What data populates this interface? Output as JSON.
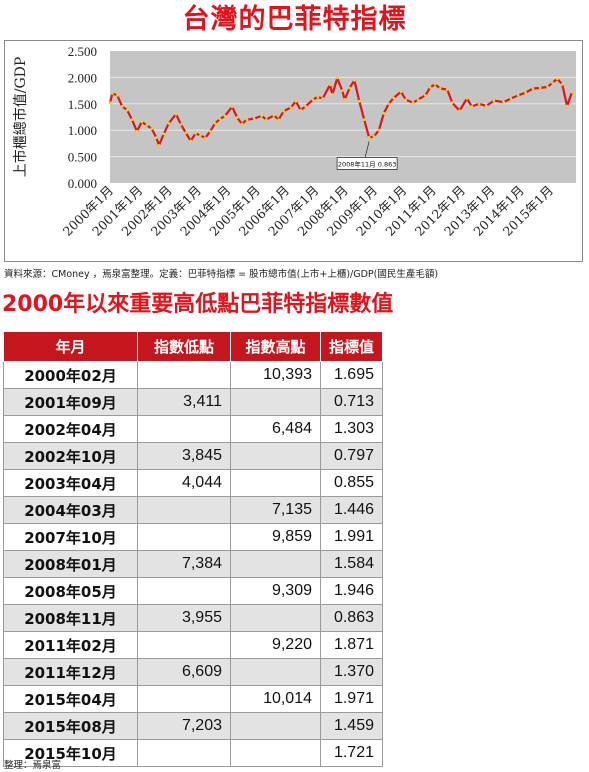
{
  "title": "台灣的巴菲特指標",
  "source_note": "資料來源：CMoney ，焉泉富整理。定義：巴菲特指標 = 股市總市值(上市+上櫃)/GDP(國民生產毛額)",
  "table_title": "2000年以來重要高低點巴菲特指標數值",
  "table": {
    "headers": [
      "年月",
      "指數低點",
      "指數高點",
      "指標值"
    ],
    "rows": [
      [
        "2000年02月",
        "",
        "10,393",
        "1.695"
      ],
      [
        "2001年09月",
        "3,411",
        "",
        "0.713"
      ],
      [
        "2002年04月",
        "",
        "6,484",
        "1.303"
      ],
      [
        "2002年10月",
        "3,845",
        "",
        "0.797"
      ],
      [
        "2003年04月",
        "4,044",
        "",
        "0.855"
      ],
      [
        "2004年03月",
        "",
        "7,135",
        "1.446"
      ],
      [
        "2007年10月",
        "",
        "9,859",
        "1.991"
      ],
      [
        "2008年01月",
        "7,384",
        "",
        "1.584"
      ],
      [
        "2008年05月",
        "",
        "9,309",
        "1.946"
      ],
      [
        "2008年11月",
        "3,955",
        "",
        "0.863"
      ],
      [
        "2011年02月",
        "",
        "9,220",
        "1.871"
      ],
      [
        "2011年12月",
        "6,609",
        "",
        "1.370"
      ],
      [
        "2015年04月",
        "",
        "10,014",
        "1.971"
      ],
      [
        "2015年08月",
        "7,203",
        "",
        "1.459"
      ],
      [
        "2015年10月",
        "",
        "",
        "1.721"
      ]
    ]
  },
  "footer": "整理：焉泉富",
  "colors": {
    "title_red": "#e4131b",
    "header_red": "#c6161d",
    "plot_bg": "#c5c5c5",
    "line_red": "#e0151b",
    "marker_yellow": "#f0d21a",
    "row_alt_gray": "#e3e3e3"
  },
  "chart_data": {
    "type": "line",
    "title": "",
    "ylabel": "上市櫃總市值/GDP",
    "xlabel": "",
    "ylim": [
      0,
      2.5
    ],
    "grid": true,
    "legend": "none",
    "yticks": [
      "0.000",
      "0.500",
      "1.000",
      "1.500",
      "2.000",
      "2.500"
    ],
    "xticks": [
      "2000年1月",
      "2001年1月",
      "2002年1月",
      "2003年1月",
      "2004年1月",
      "2005年1月",
      "2006年1月",
      "2007年1月",
      "2008年1月",
      "2009年1月",
      "2010年1月",
      "2011年1月",
      "2012年1月",
      "2013年1月",
      "2014年1月",
      "2015年1月"
    ],
    "x_range": [
      "2000-01",
      "2015-10"
    ],
    "annotation": {
      "x": "2008-11",
      "y": 0.863,
      "text": "2008年11月 0.863"
    },
    "series": [
      {
        "points": [
          [
            "2000-01",
            1.52
          ],
          [
            "2000-02",
            1.695
          ],
          [
            "2000-04",
            1.66
          ],
          [
            "2000-06",
            1.45
          ],
          [
            "2000-08",
            1.38
          ],
          [
            "2000-10",
            1.2
          ],
          [
            "2000-12",
            0.98
          ],
          [
            "2001-02",
            1.16
          ],
          [
            "2001-04",
            1.09
          ],
          [
            "2001-06",
            1.03
          ],
          [
            "2001-08",
            0.86
          ],
          [
            "2001-09",
            0.713
          ],
          [
            "2001-11",
            0.93
          ],
          [
            "2002-01",
            1.13
          ],
          [
            "2002-04",
            1.303
          ],
          [
            "2002-06",
            1.11
          ],
          [
            "2002-08",
            0.95
          ],
          [
            "2002-10",
            0.797
          ],
          [
            "2002-12",
            0.94
          ],
          [
            "2003-02",
            0.9
          ],
          [
            "2003-04",
            0.855
          ],
          [
            "2003-06",
            0.98
          ],
          [
            "2003-08",
            1.13
          ],
          [
            "2003-10",
            1.21
          ],
          [
            "2003-12",
            1.27
          ],
          [
            "2004-03",
            1.446
          ],
          [
            "2004-05",
            1.24
          ],
          [
            "2004-07",
            1.12
          ],
          [
            "2004-09",
            1.2
          ],
          [
            "2004-12",
            1.22
          ],
          [
            "2005-03",
            1.27
          ],
          [
            "2005-05",
            1.2
          ],
          [
            "2005-08",
            1.28
          ],
          [
            "2005-10",
            1.2
          ],
          [
            "2005-12",
            1.36
          ],
          [
            "2006-03",
            1.43
          ],
          [
            "2006-05",
            1.55
          ],
          [
            "2006-07",
            1.38
          ],
          [
            "2006-09",
            1.45
          ],
          [
            "2006-12",
            1.58
          ],
          [
            "2007-02",
            1.63
          ],
          [
            "2007-04",
            1.6
          ],
          [
            "2007-07",
            1.86
          ],
          [
            "2007-08",
            1.68
          ],
          [
            "2007-10",
            1.991
          ],
          [
            "2007-12",
            1.75
          ],
          [
            "2008-01",
            1.584
          ],
          [
            "2008-03",
            1.8
          ],
          [
            "2008-05",
            1.946
          ],
          [
            "2008-07",
            1.55
          ],
          [
            "2008-09",
            1.2
          ],
          [
            "2008-11",
            0.863
          ],
          [
            "2009-01",
            0.88
          ],
          [
            "2009-03",
            1.0
          ],
          [
            "2009-05",
            1.32
          ],
          [
            "2009-07",
            1.5
          ],
          [
            "2009-09",
            1.61
          ],
          [
            "2009-12",
            1.73
          ],
          [
            "2010-02",
            1.58
          ],
          [
            "2010-05",
            1.52
          ],
          [
            "2010-07",
            1.58
          ],
          [
            "2010-10",
            1.66
          ],
          [
            "2010-12",
            1.81
          ],
          [
            "2011-02",
            1.871
          ],
          [
            "2011-04",
            1.79
          ],
          [
            "2011-07",
            1.77
          ],
          [
            "2011-09",
            1.52
          ],
          [
            "2011-12",
            1.37
          ],
          [
            "2012-03",
            1.6
          ],
          [
            "2012-05",
            1.45
          ],
          [
            "2012-08",
            1.5
          ],
          [
            "2012-11",
            1.46
          ],
          [
            "2013-02",
            1.56
          ],
          [
            "2013-06",
            1.53
          ],
          [
            "2013-09",
            1.6
          ],
          [
            "2013-12",
            1.66
          ],
          [
            "2014-03",
            1.71
          ],
          [
            "2014-06",
            1.79
          ],
          [
            "2014-09",
            1.8
          ],
          [
            "2014-12",
            1.82
          ],
          [
            "2015-02",
            1.9
          ],
          [
            "2015-04",
            1.971
          ],
          [
            "2015-06",
            1.87
          ],
          [
            "2015-08",
            1.459
          ],
          [
            "2015-10",
            1.721
          ]
        ]
      }
    ]
  }
}
